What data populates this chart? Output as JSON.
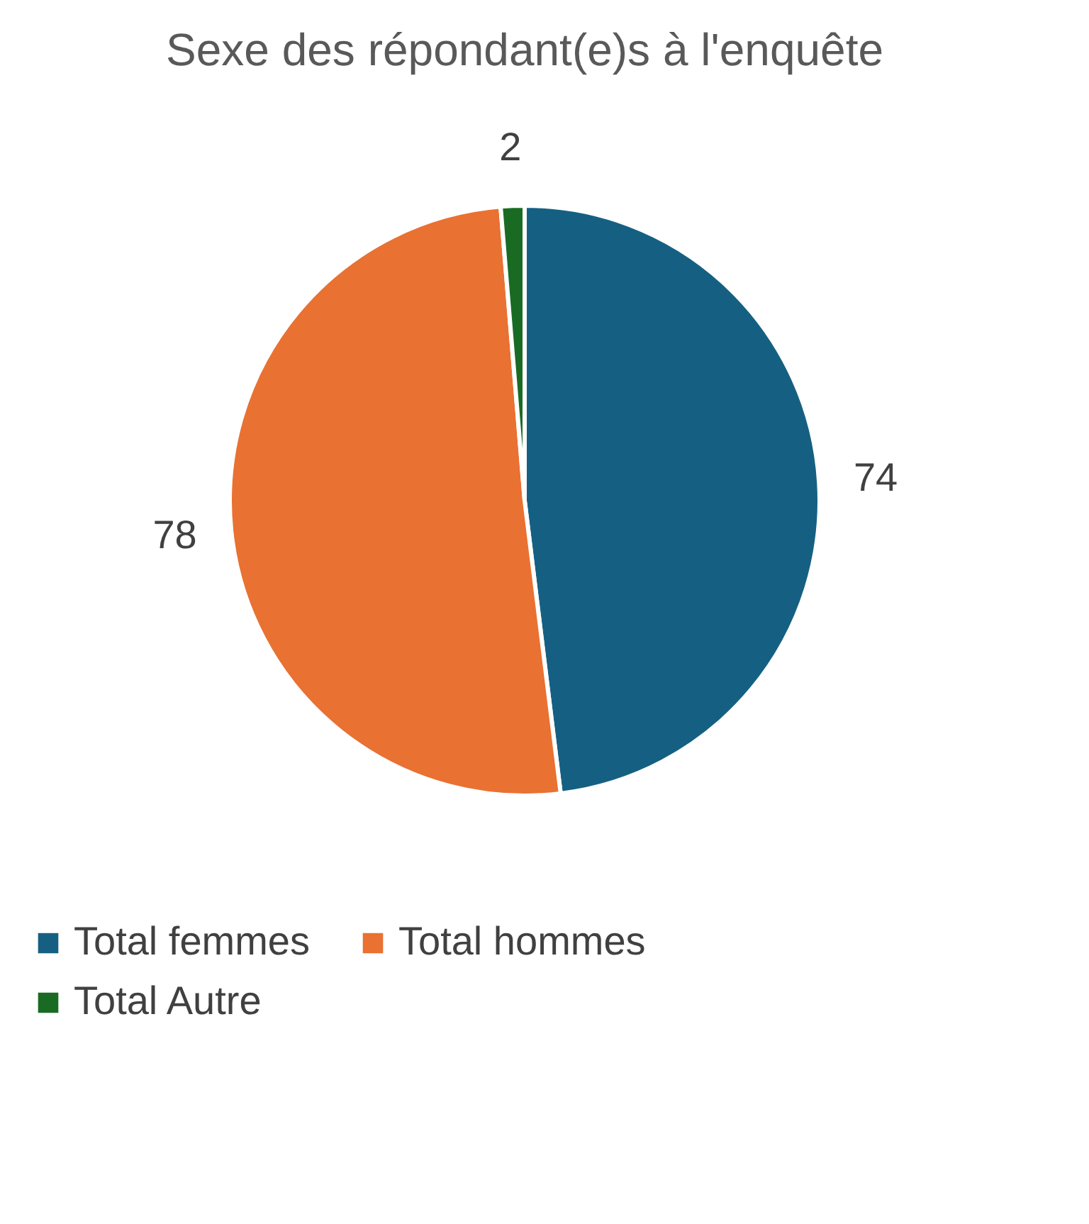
{
  "chart_data": {
    "type": "pie",
    "title": "Sexe des répondant(e)s à l'enquête",
    "categories": [
      "Total femmes",
      "Total hommes",
      "Total Autre"
    ],
    "values": [
      74,
      78,
      2
    ],
    "colors": [
      "#156082",
      "#e97132",
      "#196b24"
    ],
    "data_labels": true,
    "legend": "bottom"
  }
}
